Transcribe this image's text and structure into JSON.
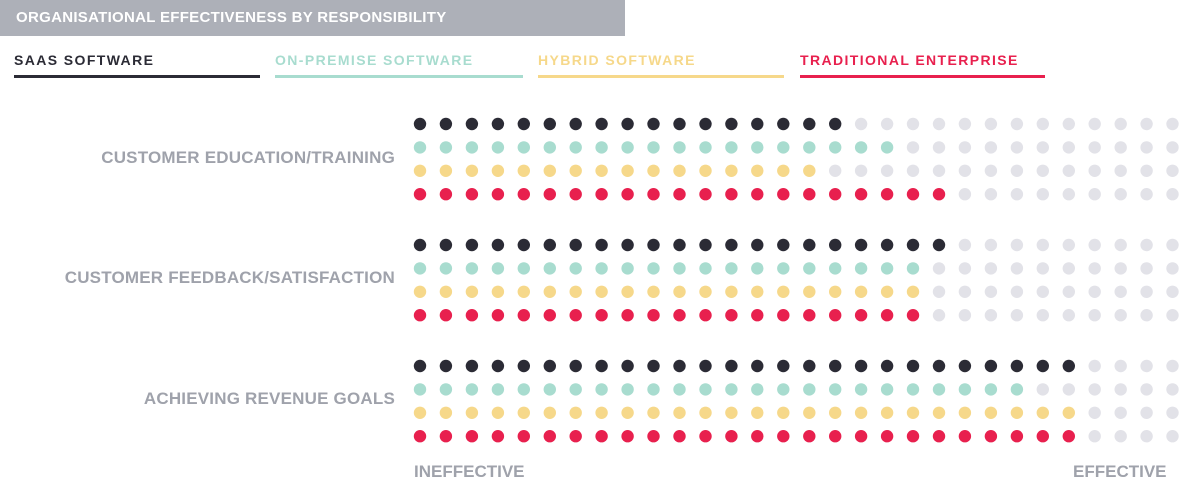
{
  "title": "ORGANISATIONAL EFFECTIVENESS BY RESPONSIBILITY",
  "legend": [
    {
      "label": "SAAS SOFTWARE",
      "color": "#2b2b35"
    },
    {
      "label": "ON-PREMISE SOFTWARE",
      "color": "#a8dccf"
    },
    {
      "label": "HYBRID SOFTWARE",
      "color": "#f6d88a"
    },
    {
      "label": "TRADITIONAL ENTERPRISE",
      "color": "#e8204e"
    }
  ],
  "axis": {
    "low_label": "INEFFECTIVE",
    "high_label": "EFFECTIVE"
  },
  "colors": {
    "empty_dot": "#e2e2e8",
    "label_gray": "#9fa2ab",
    "title_bar": "#adb0b8"
  },
  "chart_data": {
    "type": "dot-matrix",
    "title": "ORGANISATIONAL EFFECTIVENESS BY RESPONSIBILITY",
    "scale_max": 30,
    "series": [
      {
        "name": "SAAS SOFTWARE",
        "color": "#2b2b35"
      },
      {
        "name": "ON-PREMISE SOFTWARE",
        "color": "#a8dccf"
      },
      {
        "name": "HYBRID SOFTWARE",
        "color": "#f6d88a"
      },
      {
        "name": "TRADITIONAL ENTERPRISE",
        "color": "#e8204e"
      }
    ],
    "categories": [
      {
        "label": "CUSTOMER EDUCATION/TRAINING",
        "values": [
          17,
          19,
          16,
          21
        ]
      },
      {
        "label": "CUSTOMER FEEDBACK/SATISFACTION",
        "values": [
          21,
          20,
          20,
          20
        ]
      },
      {
        "label": "ACHIEVING REVENUE GOALS",
        "values": [
          26,
          24,
          26,
          26
        ]
      }
    ]
  }
}
